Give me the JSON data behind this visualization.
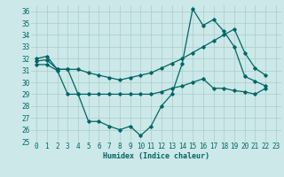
{
  "xlabel": "Humidex (Indice chaleur)",
  "xlim": [
    -0.5,
    23.5
  ],
  "ylim": [
    25,
    36.5
  ],
  "yticks": [
    25,
    26,
    27,
    28,
    29,
    30,
    31,
    32,
    33,
    34,
    35,
    36
  ],
  "xticks": [
    0,
    1,
    2,
    3,
    4,
    5,
    6,
    7,
    8,
    9,
    10,
    11,
    12,
    13,
    14,
    15,
    16,
    17,
    18,
    19,
    20,
    21,
    22,
    23
  ],
  "bg_color": "#cce8e8",
  "grid_color": "#aacccc",
  "line_color": "#006666",
  "series": [
    {
      "x": [
        0,
        1,
        2,
        3,
        4,
        5,
        6,
        7,
        8,
        9,
        10,
        11,
        12,
        13,
        14,
        15,
        16,
        17,
        18,
        19,
        20,
        21,
        22
      ],
      "y": [
        32.0,
        32.2,
        31.1,
        31.1,
        29.0,
        26.7,
        26.7,
        26.3,
        26.0,
        26.3,
        25.5,
        26.3,
        28.0,
        29.0,
        31.6,
        36.2,
        34.8,
        35.3,
        34.3,
        33.0,
        30.5,
        30.1,
        29.7
      ]
    },
    {
      "x": [
        0,
        1,
        2,
        3,
        4,
        5,
        6,
        7,
        8,
        9,
        10,
        11,
        12,
        13,
        14,
        15,
        16,
        17,
        18,
        19,
        20,
        21,
        22
      ],
      "y": [
        31.8,
        31.9,
        31.1,
        31.1,
        31.1,
        30.8,
        30.6,
        30.4,
        30.2,
        30.4,
        30.6,
        30.8,
        31.2,
        31.6,
        32.0,
        32.5,
        33.0,
        33.5,
        34.0,
        34.5,
        32.5,
        31.2,
        30.6
      ]
    },
    {
      "x": [
        0,
        1,
        2,
        3,
        4,
        5,
        6,
        7,
        8,
        9,
        10,
        11,
        12,
        13,
        14,
        15,
        16,
        17,
        18,
        19,
        20,
        21,
        22
      ],
      "y": [
        31.5,
        31.5,
        31.0,
        29.0,
        29.0,
        29.0,
        29.0,
        29.0,
        29.0,
        29.0,
        29.0,
        29.0,
        29.2,
        29.5,
        29.7,
        30.0,
        30.3,
        29.5,
        29.5,
        29.3,
        29.2,
        29.0,
        29.5
      ]
    }
  ]
}
